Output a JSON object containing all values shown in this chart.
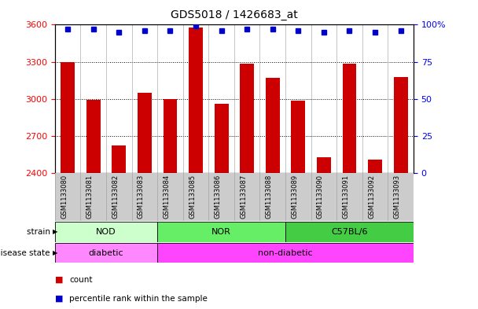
{
  "title": "GDS5018 / 1426683_at",
  "samples": [
    "GSM1133080",
    "GSM1133081",
    "GSM1133082",
    "GSM1133083",
    "GSM1133084",
    "GSM1133085",
    "GSM1133086",
    "GSM1133087",
    "GSM1133088",
    "GSM1133089",
    "GSM1133090",
    "GSM1133091",
    "GSM1133092",
    "GSM1133093"
  ],
  "counts": [
    3295,
    2990,
    2620,
    3050,
    3000,
    3580,
    2960,
    3285,
    3170,
    2985,
    2530,
    3285,
    2510,
    3175
  ],
  "percentiles": [
    97,
    97,
    95,
    96,
    96,
    99,
    96,
    97,
    97,
    96,
    95,
    96,
    95,
    96
  ],
  "ylim_left": [
    2400,
    3600
  ],
  "ylim_right": [
    0,
    100
  ],
  "yticks_left": [
    2400,
    2700,
    3000,
    3300,
    3600
  ],
  "yticks_right": [
    0,
    25,
    50,
    75,
    100
  ],
  "bar_color": "#cc0000",
  "dot_color": "#0000cc",
  "bar_bottom": 2400,
  "grid_lines": [
    2700,
    3000,
    3300
  ],
  "strain_groups": [
    {
      "label": "NOD",
      "start": 0,
      "end": 4,
      "color": "#ccffcc"
    },
    {
      "label": "NOR",
      "start": 4,
      "end": 9,
      "color": "#66ee66"
    },
    {
      "label": "C57BL/6",
      "start": 9,
      "end": 14,
      "color": "#44cc44"
    }
  ],
  "disease_groups": [
    {
      "label": "diabetic",
      "start": 0,
      "end": 4,
      "color": "#ff88ff"
    },
    {
      "label": "non-diabetic",
      "start": 4,
      "end": 14,
      "color": "#ff44ff"
    }
  ],
  "strain_label": "strain",
  "disease_label": "disease state",
  "legend_count_label": "count",
  "legend_pct_label": "percentile rank within the sample",
  "bg_color": "#ffffff",
  "tick_area_color": "#cccccc",
  "title_fontsize": 10,
  "tick_fontsize": 8,
  "anno_fontsize": 8
}
